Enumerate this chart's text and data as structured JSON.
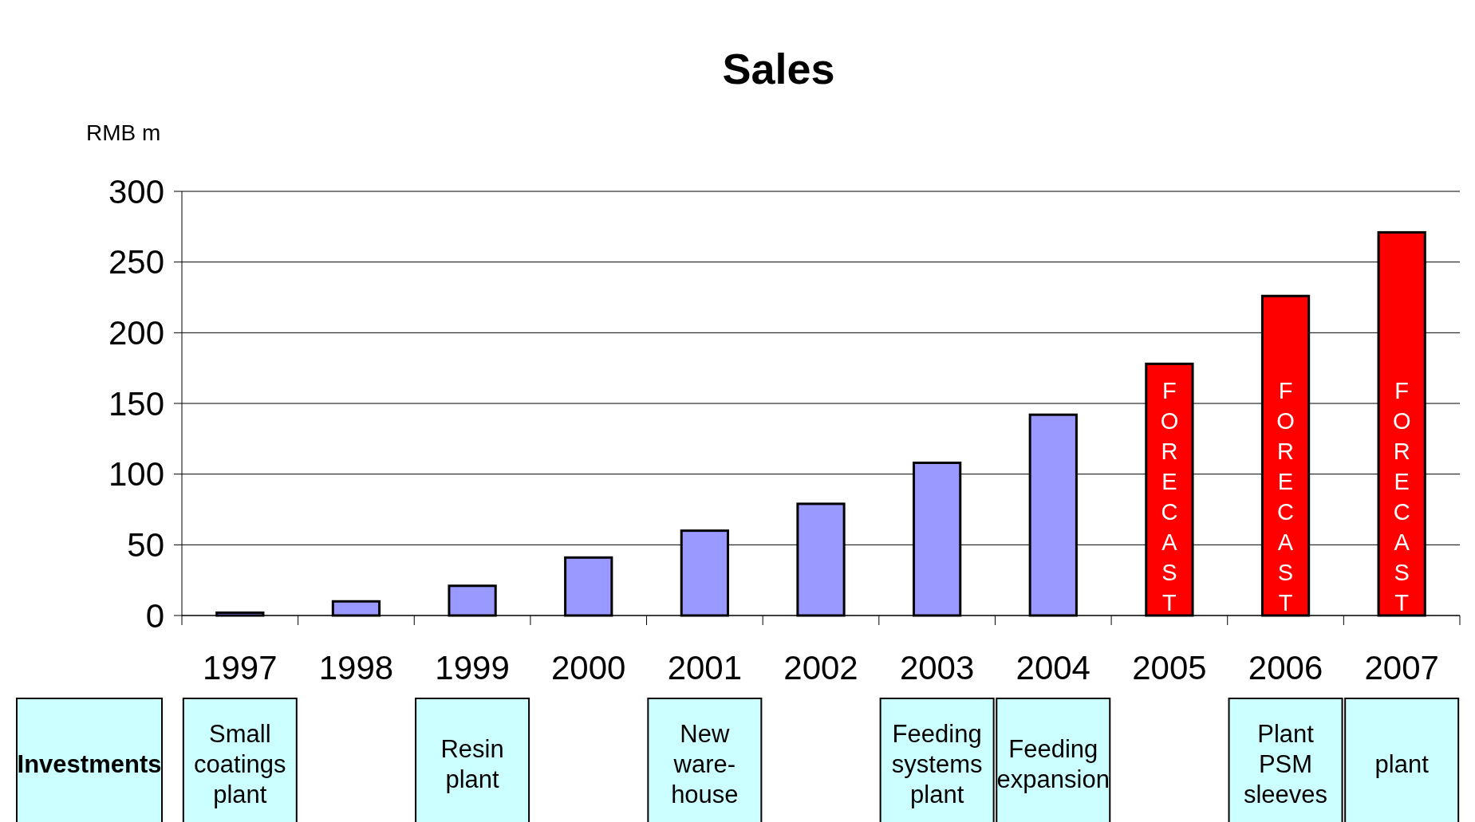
{
  "chart_data": {
    "type": "bar",
    "title": "Sales",
    "ylabel": "RMB m",
    "categories": [
      "1997",
      "1998",
      "1999",
      "2000",
      "2001",
      "2002",
      "2003",
      "2004",
      "2005",
      "2006",
      "2007"
    ],
    "values": [
      2,
      10,
      21,
      41,
      60,
      79,
      108,
      142,
      178,
      226,
      271
    ],
    "colors": [
      "#9999ff",
      "#9999ff",
      "#9999ff",
      "#9999ff",
      "#9999ff",
      "#9999ff",
      "#9999ff",
      "#9999ff",
      "#ff0000",
      "#ff0000",
      "#ff0000"
    ],
    "ylim": [
      0,
      300
    ],
    "yticks": [
      0,
      50,
      100,
      150,
      200,
      250,
      300
    ],
    "grid": "y",
    "annotations": [
      "Investments",
      "Small coatings plant",
      "Resin plant",
      "New ware-house",
      "Feeding systems plant",
      "Feeding expansion",
      "Plant PSM sleeves",
      "plant",
      "FORECAST",
      "FORECAST",
      "FORECAST"
    ]
  }
}
